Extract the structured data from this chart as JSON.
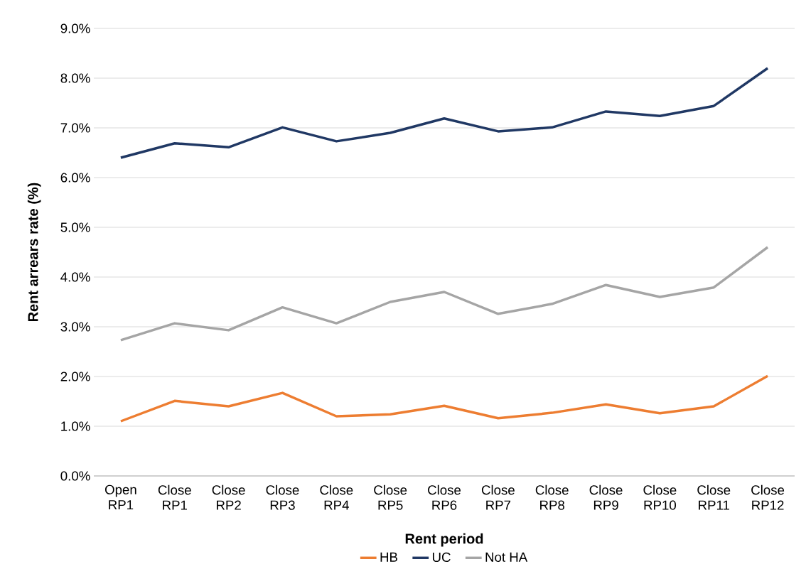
{
  "chart_data": {
    "type": "line",
    "xlabel": "Rent period",
    "ylabel": "Rent arrears rate (%)",
    "categories": [
      "Open RP1",
      "Close RP1",
      "Close RP2",
      "Close RP3",
      "Close RP4",
      "Close RP5",
      "Close RP6",
      "Close RP7",
      "Close RP8",
      "Close RP9",
      "Close RP10",
      "Close RP11",
      "Close RP12"
    ],
    "series": [
      {
        "name": "HB",
        "color": "#ed7d31",
        "values": [
          1.1,
          1.51,
          1.4,
          1.67,
          1.2,
          1.24,
          1.41,
          1.16,
          1.27,
          1.44,
          1.26,
          1.4,
          2.01
        ]
      },
      {
        "name": "UC",
        "color": "#203864",
        "values": [
          6.4,
          6.69,
          6.61,
          7.01,
          6.73,
          6.9,
          7.19,
          6.93,
          7.01,
          7.33,
          7.24,
          7.44,
          8.2
        ]
      },
      {
        "name": "Not HA",
        "color": "#a5a5a5",
        "values": [
          2.73,
          3.07,
          2.93,
          3.39,
          3.07,
          3.5,
          3.7,
          3.26,
          3.46,
          3.84,
          3.6,
          3.79,
          4.6
        ]
      }
    ],
    "ylim": [
      0,
      9
    ],
    "yticks": [
      {
        "value": 0,
        "label": "0.0%"
      },
      {
        "value": 1,
        "label": "1.0%"
      },
      {
        "value": 2,
        "label": "2.0%"
      },
      {
        "value": 3,
        "label": "3.0%"
      },
      {
        "value": 4,
        "label": "4.0%"
      },
      {
        "value": 5,
        "label": "5.0%"
      },
      {
        "value": 6,
        "label": "6.0%"
      },
      {
        "value": 7,
        "label": "7.0%"
      },
      {
        "value": 8,
        "label": "8.0%"
      },
      {
        "value": 9,
        "label": "9.0%"
      }
    ],
    "grid": "y",
    "legend": "bottom",
    "marker": "none",
    "line_style": "solid"
  }
}
